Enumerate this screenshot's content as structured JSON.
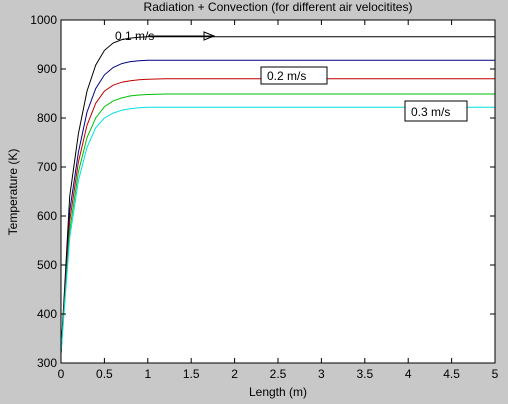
{
  "chart_data": {
    "type": "line",
    "title": "Radiation + Convection (for different air velocitites)",
    "xlabel": "Length (m)",
    "ylabel": "Temperature (K)",
    "xlim": [
      0,
      5
    ],
    "ylim": [
      300,
      1000
    ],
    "xticks": [
      0,
      0.5,
      1,
      1.5,
      2,
      2.5,
      3,
      3.5,
      4,
      4.5,
      5
    ],
    "xtick_labels": [
      "0",
      "0.5",
      "1",
      "1.5",
      "2",
      "2.5",
      "3",
      "3.5",
      "4",
      "4.5",
      "5"
    ],
    "yticks": [
      300,
      400,
      500,
      600,
      700,
      800,
      900,
      1000
    ],
    "ytick_labels": [
      "300",
      "400",
      "500",
      "600",
      "700",
      "800",
      "900",
      "1000"
    ],
    "grid": false,
    "series": [
      {
        "color": "#000000",
        "x": [
          0,
          0.1,
          0.2,
          0.3,
          0.4,
          0.5,
          0.6,
          0.7,
          0.8,
          0.9,
          1,
          1.2,
          1.5,
          2,
          3,
          4,
          5
        ],
        "y": [
          320,
          640,
          768,
          855,
          908,
          938,
          953,
          960,
          963,
          965,
          966,
          966,
          966,
          966,
          966,
          966,
          966
        ]
      },
      {
        "color": "#000080",
        "x": [
          0,
          0.1,
          0.2,
          0.3,
          0.4,
          0.5,
          0.6,
          0.7,
          0.8,
          0.9,
          1,
          1.2,
          1.5,
          2,
          3,
          4,
          5
        ],
        "y": [
          320,
          610,
          730,
          812,
          860,
          888,
          903,
          911,
          915,
          917,
          918,
          918,
          918,
          918,
          918,
          918,
          918
        ]
      },
      {
        "color": "#c00000",
        "x": [
          0,
          0.1,
          0.2,
          0.3,
          0.4,
          0.5,
          0.6,
          0.7,
          0.8,
          0.9,
          1,
          1.2,
          1.5,
          2,
          3,
          4,
          5
        ],
        "y": [
          320,
          590,
          710,
          785,
          830,
          855,
          867,
          873,
          876,
          878,
          879,
          880,
          880,
          880,
          880,
          880,
          880
        ]
      },
      {
        "color": "#00c000",
        "x": [
          0,
          0.1,
          0.2,
          0.3,
          0.4,
          0.5,
          0.6,
          0.7,
          0.8,
          0.9,
          1,
          1.2,
          1.5,
          2,
          3,
          4,
          5
        ],
        "y": [
          320,
          570,
          690,
          760,
          800,
          823,
          835,
          841,
          845,
          847,
          848,
          849,
          849,
          849,
          849,
          849,
          849
        ]
      },
      {
        "color": "#00e0e0",
        "x": [
          0,
          0.1,
          0.2,
          0.3,
          0.4,
          0.5,
          0.6,
          0.7,
          0.8,
          0.9,
          1,
          1.2,
          1.5,
          2,
          3,
          4,
          5
        ],
        "y": [
          320,
          555,
          672,
          740,
          780,
          800,
          810,
          816,
          819,
          821,
          822,
          822,
          822,
          822,
          822,
          822,
          822
        ]
      }
    ],
    "annotations": [
      {
        "text": "0.1 m/s",
        "boxed": false,
        "arrow": true
      },
      {
        "text": "0.2 m/s",
        "boxed": true,
        "arrow": false
      },
      {
        "text": "0.3 m/s",
        "boxed": true,
        "arrow": false
      }
    ]
  }
}
